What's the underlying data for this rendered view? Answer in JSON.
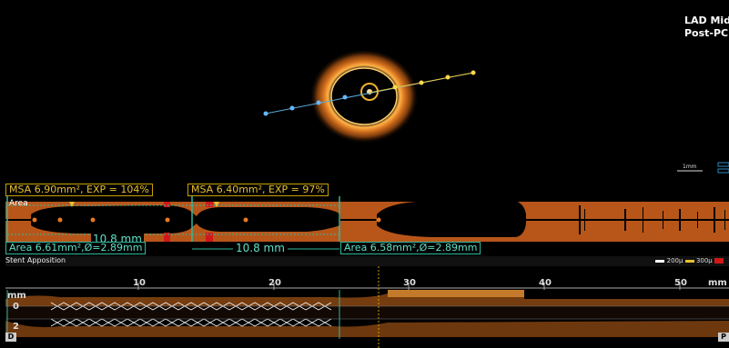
{
  "case": {
    "line1": "LAD Mid",
    "line2": "Post-PCI"
  },
  "oct_view": {
    "scale_label": "1mm"
  },
  "measurements": {
    "msa_left": "MSA 6.90mm², EXP = 104%",
    "msa_right": "MSA 6.40mm², EXP = 97%",
    "area_track_label": "Area",
    "length_left": "10.8 mm",
    "length_right": "10.8 mm",
    "ref_left": "Area 6.61mm²,Ø=2.89mm",
    "ref_right": "Area 6.58mm²,Ø=2.89mm"
  },
  "stent": {
    "label": "Stent Apposition",
    "legend_200": "200µ",
    "legend_300": "300µ"
  },
  "longitudinal": {
    "unit": "mm",
    "depth_0": "0",
    "depth_2": "2",
    "ticks": [
      "10",
      "20",
      "30",
      "40",
      "50"
    ],
    "unit_right": "mm",
    "distal_label": "D",
    "proximal_label": "P"
  },
  "colors": {
    "vessel_orange": "#c6601a",
    "msa_gold": "#e8c030",
    "measure_teal": "#2fb89e",
    "stent_red": "#d01818"
  }
}
